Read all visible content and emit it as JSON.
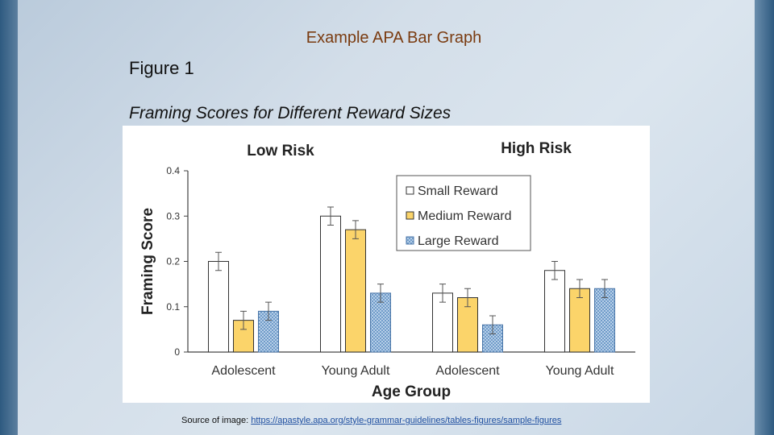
{
  "slide": {
    "title": "Example APA Bar Graph",
    "figure_label": "Figure 1",
    "figure_caption": "Framing Scores for Different Reward Sizes",
    "source_prefix": "Source of image: ",
    "source_link": "https://apastyle.apa.org/style-grammar-guidelines/tables-figures/sample-figures"
  },
  "colors": {
    "small": "#ffffff",
    "medium": "#fbd46a",
    "large": "#a9c8e8",
    "large_pattern": "#6f9cc9",
    "axis": "#404040",
    "error_bar": "#555555"
  },
  "chart_data": {
    "type": "bar",
    "panel_titles": [
      "Low Risk",
      "High Risk"
    ],
    "categories": [
      "Adolescent",
      "Young Adult",
      "Adolescent",
      "Young Adult"
    ],
    "series": [
      {
        "name": "Small Reward",
        "values": [
          0.2,
          0.3,
          0.13,
          0.18
        ],
        "errors": [
          0.02,
          0.02,
          0.02,
          0.02
        ]
      },
      {
        "name": "Medium Reward",
        "values": [
          0.07,
          0.27,
          0.12,
          0.14
        ],
        "errors": [
          0.02,
          0.02,
          0.02,
          0.02
        ]
      },
      {
        "name": "Large Reward",
        "values": [
          0.09,
          0.13,
          0.06,
          0.14
        ],
        "errors": [
          0.02,
          0.02,
          0.02,
          0.02
        ]
      }
    ],
    "xlabel": "Age Group",
    "ylabel": "Framing Score",
    "ylim": [
      0,
      0.4
    ],
    "yticks": [
      "0",
      "0.1",
      "0.2",
      "0.3",
      "0.4"
    ],
    "legend_position": "top-right",
    "grid": false
  }
}
